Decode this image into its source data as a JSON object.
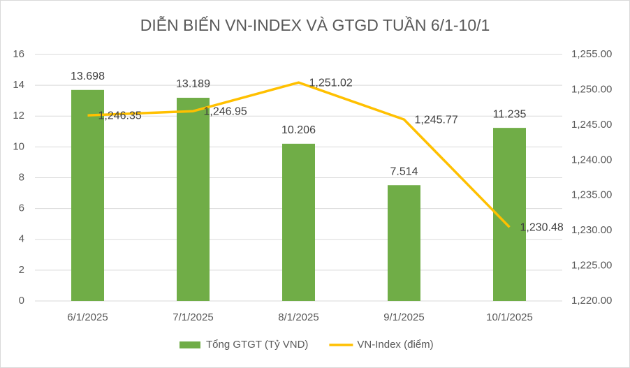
{
  "chart_data": {
    "type": "bar",
    "title": "DIỄN BIẾN VN-INDEX VÀ GTGD TUẦN 6/1-10/1",
    "categories": [
      "6/1/2025",
      "7/1/2025",
      "8/1/2025",
      "9/1/2025",
      "10/1/2025"
    ],
    "series": [
      {
        "name": "Tổng GTGT (Tỷ VND)",
        "type": "bar",
        "color": "#70ad47",
        "values": [
          13.698,
          13.189,
          10.206,
          7.514,
          11.235
        ]
      },
      {
        "name": "VN-Index (điểm)",
        "type": "line",
        "axis": "y2",
        "color": "#ffc000",
        "values": [
          1246.35,
          1246.95,
          1251.02,
          1245.77,
          1230.48
        ],
        "value_labels": [
          "1,246.35",
          "1,246.95",
          "1,251.02",
          "1,245.77",
          "1,230.48"
        ]
      }
    ],
    "ylim": [
      0,
      16
    ],
    "yticks": [
      0,
      2,
      4,
      6,
      8,
      10,
      12,
      14,
      16
    ],
    "y2lim": [
      1220,
      1255
    ],
    "y2ticks": [
      {
        "value": 1220,
        "label": "1,220.00"
      },
      {
        "value": 1225,
        "label": "1,225.00"
      },
      {
        "value": 1230,
        "label": "1,230.00"
      },
      {
        "value": 1235,
        "label": "1,235.00"
      },
      {
        "value": 1240,
        "label": "1,240.00"
      },
      {
        "value": 1245,
        "label": "1,245.00"
      },
      {
        "value": 1250,
        "label": "1,250.00"
      },
      {
        "value": 1255,
        "label": "1,255.00"
      }
    ],
    "grid": true,
    "legend": "bottom"
  }
}
